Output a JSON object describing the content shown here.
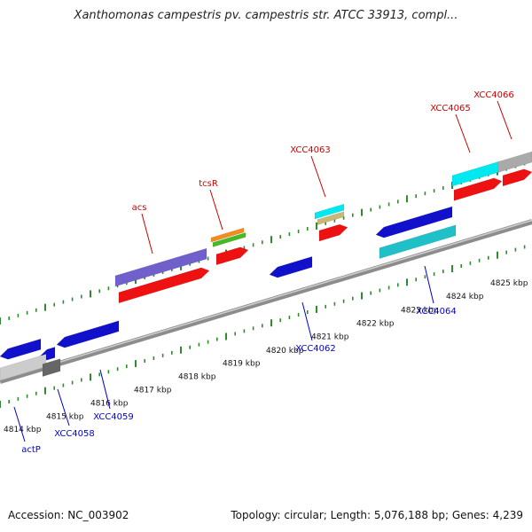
{
  "title": "Xanthomonas campestris pv. campestris str. ATCC 33913, compl...",
  "footer": {
    "accession": "Accession: NC_003902",
    "stats": "Topology: circular; Length: 5,076,188 bp; Genes: 4,239"
  },
  "colors": {
    "tick": "#2e8b2e",
    "backbone": "#8c8c8c",
    "label_top": "#cc0000",
    "label_bottom": "#0000cc",
    "feature_red": "#ee1111",
    "feature_blue": "#1111cc",
    "feature_cyan": "#00e8f0",
    "feature_teal": "#20c0c8",
    "feature_purple": "#7060cc",
    "feature_orange": "#f28c1e",
    "feature_green": "#44bb22",
    "feature_tan": "#c8b878",
    "feature_gray": "#aaaaaa"
  },
  "scale_labels": [
    "4814 kbp",
    "4815 kbp",
    "4816 kbp",
    "4817 kbp",
    "4818 kbp",
    "4819 kbp",
    "4820 kbp",
    "4821 kbp",
    "4822 kbp",
    "4823 kbp",
    "4824 kbp",
    "4825 kbp"
  ],
  "top_gene_labels": [
    "acs",
    "tcsR",
    "XCC4063",
    "XCC4065",
    "XCC4066"
  ],
  "bottom_gene_labels": [
    "actP",
    "XCC4058",
    "XCC4059",
    "XCC4062",
    "XCC4064"
  ]
}
